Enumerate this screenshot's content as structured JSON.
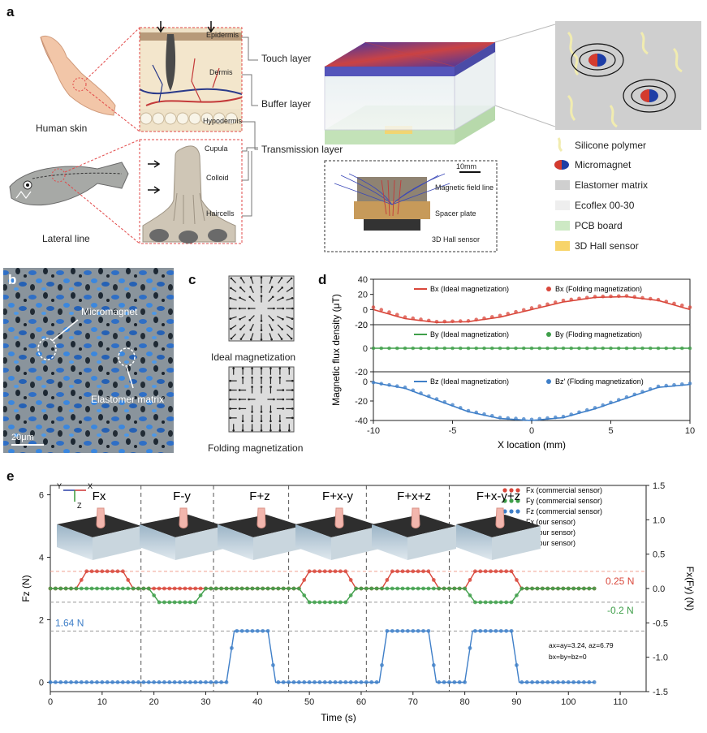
{
  "colors": {
    "red": "#d9473b",
    "green": "#3f9f4a",
    "blue": "#3f7fc8",
    "silicone": "#f3eeb0",
    "elastomer": "#cfcfcf",
    "ecoflex": "#eeeeee",
    "pcb": "#cde9c4",
    "hall": "#f7d46a",
    "micromagnet_n": "#1e3ea6",
    "micromagnet_s": "#d43b2e"
  },
  "panel_a": {
    "label": "a",
    "human_skin": "Human skin",
    "lateral_line": "Lateral line",
    "skin_layers": [
      "Epidermis",
      "Dermis",
      "Hypodermis"
    ],
    "hair_parts": [
      "Cupula",
      "Colloid",
      "Haircells"
    ],
    "sensor_layers": [
      "Touch layer",
      "Buffer layer",
      "Transmission layer"
    ],
    "inset_labels": [
      "Magnetic field line",
      "Spacer plate",
      "3D Hall sensor"
    ],
    "scale": "10mm",
    "legend": [
      "Silicone polymer",
      "Micromagnet",
      "Elastomer matrix",
      "Ecoflex 00-30",
      "PCB board",
      "3D Hall sensor"
    ]
  },
  "panel_b": {
    "label": "b",
    "micromagnet": "Micromagnet",
    "elastomer": "Elastomer matrix",
    "scale": "20μm"
  },
  "panel_c": {
    "label": "c",
    "ideal": "Ideal magnetization",
    "folding": "Folding magnetization"
  },
  "panel_d": {
    "label": "d"
  },
  "panel_e": {
    "label": "e",
    "insets": [
      "Fx",
      "F-y",
      "F+z",
      "F+x-y",
      "F+x+z",
      "F+x-y+z"
    ],
    "annot_fx": "0.25 N",
    "annot_fy": "-0.2 N",
    "annot_fz": "1.64 N",
    "coef1": "ax=ay=3.24, az=6.79",
    "coef2": "bx=by=bz=0",
    "axes_x": "X",
    "axes_y": "Y",
    "axes_z": "Z"
  },
  "chart_data": [
    {
      "type": "line",
      "panel": "d-top",
      "xlabel": "X location (mm)",
      "ylabel": "Magnetic flux density (μT)",
      "x": [
        -10,
        -8,
        -6,
        -4,
        -2,
        0,
        2,
        4,
        6,
        8,
        10
      ],
      "xlim": [
        -10,
        10
      ],
      "ylim": [
        -20,
        40
      ],
      "yticks": [
        40,
        20,
        0,
        -20
      ],
      "series": [
        {
          "name": "Bx (Ideal magnetization)",
          "style": "line",
          "values": [
            0,
            -12,
            -17,
            -16,
            -10,
            0,
            10,
            16,
            17,
            12,
            0
          ]
        },
        {
          "name": "Bx (Folding magnetization)",
          "style": "dots",
          "values": [
            3,
            -10,
            -16,
            -15,
            -8,
            2,
            12,
            17,
            18,
            13,
            3
          ]
        }
      ]
    },
    {
      "type": "line",
      "panel": "d-mid",
      "x": [
        -10,
        -8,
        -6,
        -4,
        -2,
        0,
        2,
        4,
        6,
        8,
        10
      ],
      "xlim": [
        -10,
        10
      ],
      "ylim": [
        -20,
        20
      ],
      "yticks": [
        20,
        0,
        -20
      ],
      "series": [
        {
          "name": "By (Ideal magnetization)",
          "style": "line",
          "values": [
            0,
            0,
            0,
            0,
            0,
            0,
            0,
            0,
            0,
            0,
            0
          ]
        },
        {
          "name": "By (Floding magnetization)",
          "style": "dots",
          "values": [
            0,
            0,
            0,
            0,
            0,
            0,
            0,
            0,
            0,
            0,
            0
          ]
        }
      ]
    },
    {
      "type": "line",
      "panel": "d-bot",
      "x": [
        -10,
        -8,
        -6,
        -4,
        -2,
        0,
        2,
        4,
        6,
        8,
        10
      ],
      "xlim": [
        -10,
        10
      ],
      "ylim": [
        -40,
        10
      ],
      "yticks": [
        0,
        -20,
        -40
      ],
      "xticks": [
        -10,
        -5,
        0,
        5,
        10
      ],
      "series": [
        {
          "name": "Bz (Ideal magnetization)",
          "style": "line",
          "values": [
            -1,
            -7,
            -19,
            -31,
            -38,
            -40,
            -37,
            -28,
            -17,
            -6,
            -3
          ]
        },
        {
          "name": "Bz' (Floding magnetization)",
          "style": "dots",
          "values": [
            -1,
            -6,
            -18,
            -30,
            -37,
            -39,
            -36,
            -27,
            -16,
            -5,
            -2
          ]
        }
      ]
    },
    {
      "type": "line",
      "panel": "e",
      "xlabel": "Time (s)",
      "ylabel": "Fz (N)",
      "y2label": "Fx(Fy) (N)",
      "xlim": [
        0,
        115
      ],
      "ylim": [
        -0.3,
        6.3
      ],
      "y2lim": [
        -1.5,
        1.5
      ],
      "xticks": [
        0,
        10,
        20,
        30,
        40,
        50,
        60,
        70,
        80,
        90,
        100,
        110
      ],
      "yticks": [
        0,
        2,
        4,
        6
      ],
      "y2ticks": [
        1.5,
        1.0,
        0.5,
        0.0,
        -0.5,
        -1.0,
        -1.5
      ],
      "dividers": [
        17.5,
        31.5,
        46,
        61,
        77
      ],
      "series": [
        {
          "name": "Fx (commercial sensor)",
          "axis": "right",
          "style": "dots",
          "x": [
            0,
            5,
            7,
            14,
            16,
            48,
            50,
            57,
            59,
            64,
            66,
            73,
            75,
            80,
            82,
            89,
            91,
            105
          ],
          "values": [
            0,
            0,
            0.25,
            0.25,
            0,
            0,
            0.25,
            0.25,
            0,
            0,
            0.25,
            0.25,
            0,
            0,
            0.25,
            0.25,
            0,
            0
          ]
        },
        {
          "name": "Fy (commercial sensor)",
          "axis": "right",
          "style": "dots",
          "x": [
            0,
            19,
            21,
            28,
            30,
            48,
            50,
            57,
            59,
            80,
            82,
            89,
            91,
            105
          ],
          "values": [
            0,
            0,
            -0.2,
            -0.2,
            0,
            0,
            -0.2,
            -0.2,
            0,
            0,
            -0.2,
            -0.2,
            0,
            0
          ]
        },
        {
          "name": "Fz (commercial sensor)",
          "axis": "left",
          "style": "dots",
          "x": [
            0,
            34,
            35.5,
            42,
            43.5,
            63.5,
            65,
            73,
            74.5,
            80,
            81.5,
            89,
            90.5,
            105
          ],
          "values": [
            0,
            0,
            1.64,
            1.64,
            0,
            0,
            1.64,
            1.64,
            0,
            0,
            1.64,
            1.64,
            0,
            0
          ]
        },
        {
          "name": "Fx (our sensor)",
          "axis": "right",
          "style": "line"
        },
        {
          "name": "Fy (our sensor)",
          "axis": "right",
          "style": "line"
        },
        {
          "name": "Fz (our sensor)",
          "axis": "left",
          "style": "line"
        }
      ]
    }
  ]
}
